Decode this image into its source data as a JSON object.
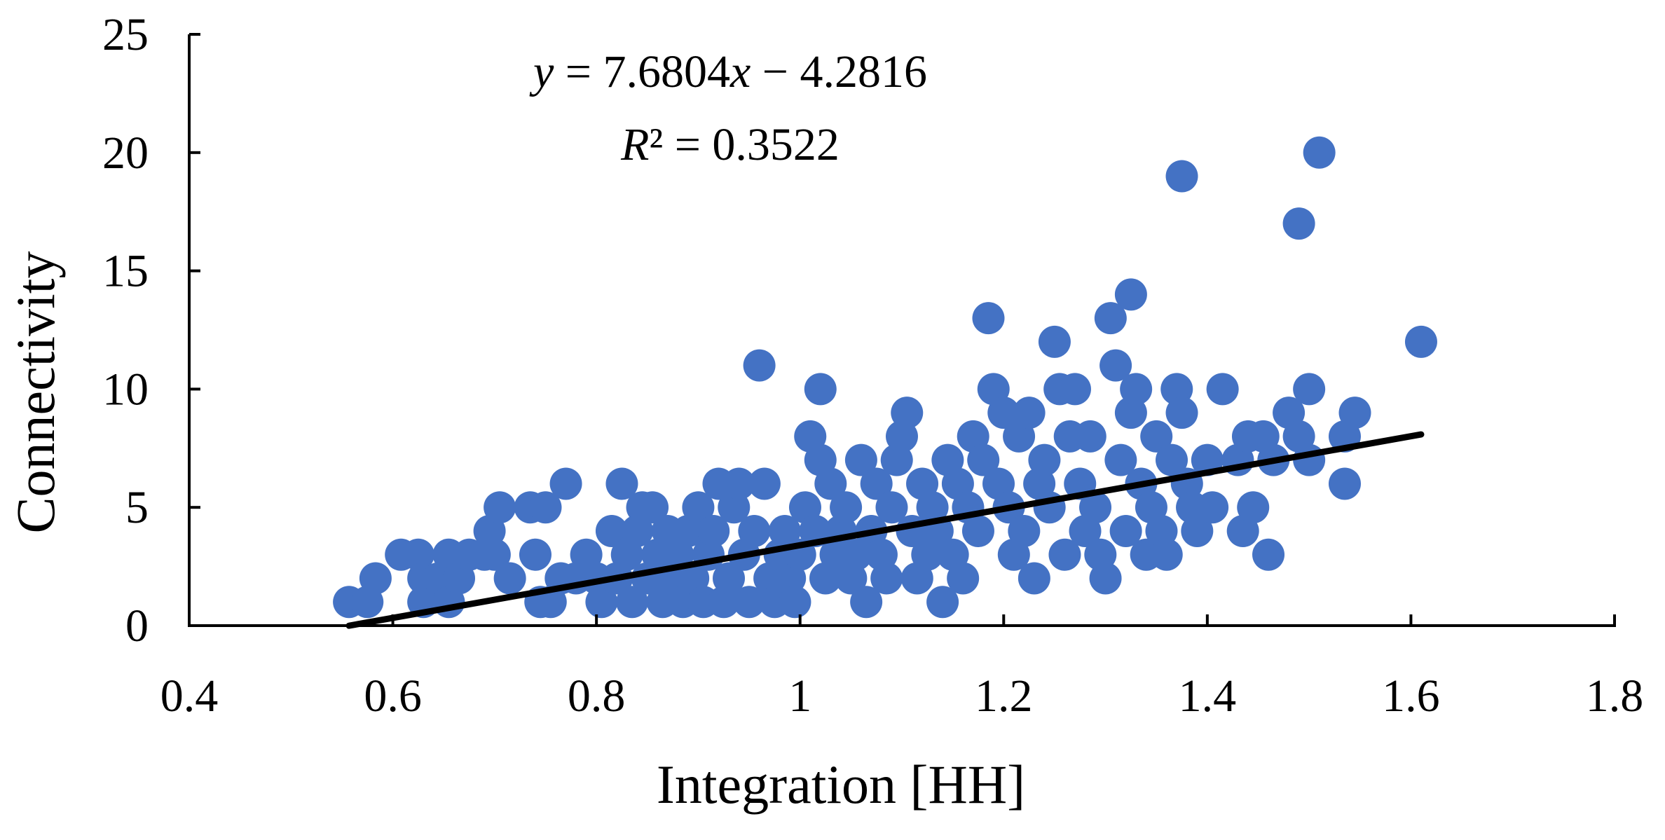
{
  "chart_data": {
    "type": "scatter",
    "title": "",
    "xlabel": "Integration [HH]",
    "ylabel": "Connectivity",
    "xlim": [
      0.4,
      1.8
    ],
    "ylim": [
      0,
      25
    ],
    "xticks": [
      "0.4",
      "0.6",
      "0.8",
      "1",
      "1.2",
      "1.4",
      "1.6",
      "1.8"
    ],
    "yticks": [
      "0",
      "5",
      "10",
      "15",
      "20",
      "25"
    ],
    "grid": false,
    "legend": "none",
    "marker_color": "#4472C4",
    "trendline": {
      "type": "linear",
      "slope": 7.6804,
      "intercept": -4.2816,
      "x_range": [
        0.557,
        1.61
      ],
      "color": "#000000",
      "equation_label": "y = 7.6804x − 4.2816",
      "r2_label": "R² = 0.3522"
    },
    "series": [
      {
        "points": [
          [
            0.557,
            1
          ],
          [
            0.575,
            1
          ],
          [
            0.583,
            2
          ],
          [
            0.608,
            3
          ],
          [
            0.625,
            3
          ],
          [
            0.63,
            2
          ],
          [
            0.63,
            1
          ],
          [
            0.645,
            2
          ],
          [
            0.655,
            3
          ],
          [
            0.655,
            1
          ],
          [
            0.665,
            2
          ],
          [
            0.675,
            3
          ],
          [
            0.69,
            3
          ],
          [
            0.695,
            4
          ],
          [
            0.705,
            5
          ],
          [
            0.7,
            3
          ],
          [
            0.715,
            2
          ],
          [
            0.735,
            5
          ],
          [
            0.74,
            3
          ],
          [
            0.745,
            1
          ],
          [
            0.75,
            5
          ],
          [
            0.755,
            1
          ],
          [
            0.765,
            2
          ],
          [
            0.77,
            6
          ],
          [
            0.78,
            2
          ],
          [
            0.79,
            3
          ],
          [
            0.8,
            2
          ],
          [
            0.805,
            1
          ],
          [
            0.815,
            4
          ],
          [
            0.82,
            2
          ],
          [
            0.825,
            6
          ],
          [
            0.83,
            3
          ],
          [
            0.835,
            1
          ],
          [
            0.84,
            4
          ],
          [
            0.845,
            5
          ],
          [
            0.85,
            2
          ],
          [
            0.855,
            5
          ],
          [
            0.86,
            3
          ],
          [
            0.865,
            1
          ],
          [
            0.87,
            4
          ],
          [
            0.875,
            2
          ],
          [
            0.88,
            3
          ],
          [
            0.885,
            1
          ],
          [
            0.89,
            4
          ],
          [
            0.895,
            2
          ],
          [
            0.9,
            5
          ],
          [
            0.905,
            1
          ],
          [
            0.91,
            3
          ],
          [
            0.915,
            4
          ],
          [
            0.92,
            6
          ],
          [
            0.925,
            1
          ],
          [
            0.93,
            2
          ],
          [
            0.935,
            5
          ],
          [
            0.94,
            6
          ],
          [
            0.945,
            3
          ],
          [
            0.95,
            1
          ],
          [
            0.955,
            4
          ],
          [
            0.96,
            11
          ],
          [
            0.965,
            6
          ],
          [
            0.97,
            2
          ],
          [
            0.975,
            1
          ],
          [
            0.98,
            3
          ],
          [
            0.985,
            4
          ],
          [
            0.99,
            2
          ],
          [
            0.995,
            1
          ],
          [
            1.0,
            3
          ],
          [
            1.005,
            5
          ],
          [
            1.01,
            8
          ],
          [
            1.015,
            4
          ],
          [
            1.02,
            10
          ],
          [
            1.02,
            7
          ],
          [
            1.025,
            2
          ],
          [
            1.03,
            6
          ],
          [
            1.035,
            3
          ],
          [
            1.04,
            4
          ],
          [
            1.045,
            5
          ],
          [
            1.05,
            2
          ],
          [
            1.055,
            3
          ],
          [
            1.06,
            7
          ],
          [
            1.065,
            1
          ],
          [
            1.07,
            4
          ],
          [
            1.075,
            6
          ],
          [
            1.08,
            3
          ],
          [
            1.085,
            2
          ],
          [
            1.09,
            5
          ],
          [
            1.095,
            7
          ],
          [
            1.1,
            8
          ],
          [
            1.105,
            9
          ],
          [
            1.11,
            4
          ],
          [
            1.115,
            2
          ],
          [
            1.12,
            6
          ],
          [
            1.125,
            3
          ],
          [
            1.13,
            5
          ],
          [
            1.135,
            4
          ],
          [
            1.14,
            1
          ],
          [
            1.145,
            7
          ],
          [
            1.15,
            3
          ],
          [
            1.155,
            6
          ],
          [
            1.16,
            2
          ],
          [
            1.165,
            5
          ],
          [
            1.17,
            8
          ],
          [
            1.175,
            4
          ],
          [
            1.18,
            7
          ],
          [
            1.185,
            13
          ],
          [
            1.19,
            10
          ],
          [
            1.195,
            6
          ],
          [
            1.2,
            9
          ],
          [
            1.205,
            5
          ],
          [
            1.21,
            3
          ],
          [
            1.215,
            8
          ],
          [
            1.22,
            4
          ],
          [
            1.225,
            9
          ],
          [
            1.23,
            2
          ],
          [
            1.235,
            6
          ],
          [
            1.24,
            7
          ],
          [
            1.245,
            5
          ],
          [
            1.25,
            12
          ],
          [
            1.255,
            10
          ],
          [
            1.26,
            3
          ],
          [
            1.265,
            8
          ],
          [
            1.27,
            10
          ],
          [
            1.275,
            6
          ],
          [
            1.28,
            4
          ],
          [
            1.285,
            8
          ],
          [
            1.29,
            5
          ],
          [
            1.295,
            3
          ],
          [
            1.3,
            2
          ],
          [
            1.305,
            13
          ],
          [
            1.31,
            11
          ],
          [
            1.315,
            7
          ],
          [
            1.32,
            4
          ],
          [
            1.325,
            9
          ],
          [
            1.325,
            14
          ],
          [
            1.33,
            10
          ],
          [
            1.335,
            6
          ],
          [
            1.34,
            3
          ],
          [
            1.345,
            5
          ],
          [
            1.35,
            8
          ],
          [
            1.355,
            4
          ],
          [
            1.36,
            3
          ],
          [
            1.365,
            7
          ],
          [
            1.37,
            10
          ],
          [
            1.375,
            19
          ],
          [
            1.375,
            9
          ],
          [
            1.38,
            6
          ],
          [
            1.385,
            5
          ],
          [
            1.39,
            4
          ],
          [
            1.4,
            7
          ],
          [
            1.405,
            5
          ],
          [
            1.415,
            10
          ],
          [
            1.43,
            7
          ],
          [
            1.435,
            4
          ],
          [
            1.44,
            8
          ],
          [
            1.445,
            5
          ],
          [
            1.455,
            8
          ],
          [
            1.46,
            3
          ],
          [
            1.465,
            7
          ],
          [
            1.48,
            9
          ],
          [
            1.49,
            8
          ],
          [
            1.49,
            17
          ],
          [
            1.5,
            7
          ],
          [
            1.5,
            10
          ],
          [
            1.51,
            20
          ],
          [
            1.535,
            8
          ],
          [
            1.535,
            6
          ],
          [
            1.545,
            9
          ],
          [
            1.61,
            12
          ]
        ]
      }
    ]
  }
}
